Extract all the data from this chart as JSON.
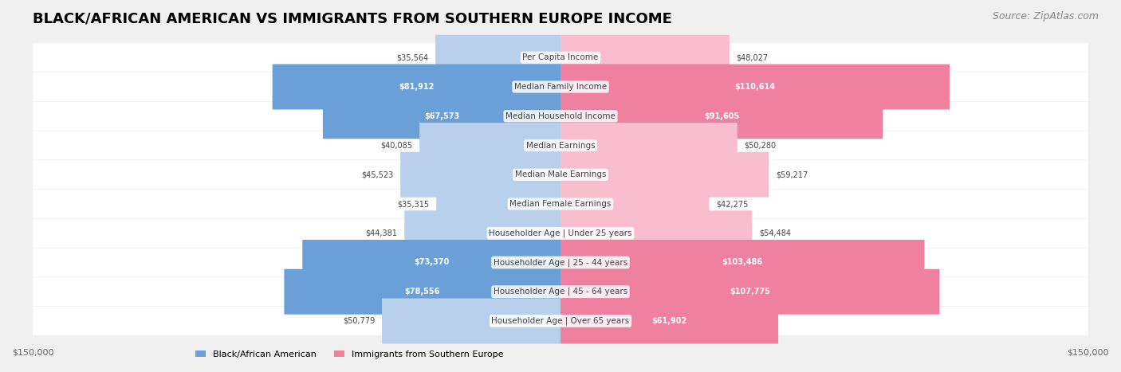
{
  "title": "BLACK/AFRICAN AMERICAN VS IMMIGRANTS FROM SOUTHERN EUROPE INCOME",
  "source": "Source: ZipAtlas.com",
  "categories": [
    "Per Capita Income",
    "Median Family Income",
    "Median Household Income",
    "Median Earnings",
    "Median Male Earnings",
    "Median Female Earnings",
    "Householder Age | Under 25 years",
    "Householder Age | 25 - 44 years",
    "Householder Age | 45 - 64 years",
    "Householder Age | Over 65 years"
  ],
  "black_values": [
    35564,
    81912,
    67573,
    40085,
    45523,
    35315,
    44381,
    73370,
    78556,
    50779
  ],
  "immigrant_values": [
    48027,
    110614,
    91605,
    50280,
    59217,
    42275,
    54484,
    103486,
    107775,
    61902
  ],
  "black_labels": [
    "$35,564",
    "$81,912",
    "$67,573",
    "$40,085",
    "$45,523",
    "$35,315",
    "$44,381",
    "$73,370",
    "$78,556",
    "$50,779"
  ],
  "immigrant_labels": [
    "$48,027",
    "$110,614",
    "$91,605",
    "$50,280",
    "$59,217",
    "$42,275",
    "$54,484",
    "$103,486",
    "$107,775",
    "$61,902"
  ],
  "black_color_dark": "#6a9fd8",
  "black_color_light": "#b8d0ec",
  "immigrant_color_dark": "#f080a0",
  "immigrant_color_light": "#f8bece",
  "max_val": 150000,
  "bg_color": "#f0f0f0",
  "row_bg": "#f9f9f9",
  "label_inside_threshold": 60000,
  "title_fontsize": 13,
  "source_fontsize": 9
}
